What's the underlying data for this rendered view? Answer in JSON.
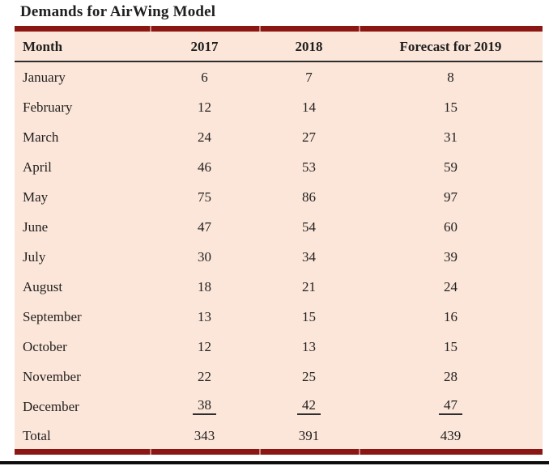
{
  "title": "Demands for AirWing Model",
  "table": {
    "columns": [
      "Month",
      "2017",
      "2018",
      "Forecast for 2019"
    ],
    "rows": [
      {
        "month": "January",
        "y2017": "6",
        "y2018": "7",
        "forecast": "8"
      },
      {
        "month": "February",
        "y2017": "12",
        "y2018": "14",
        "forecast": "15"
      },
      {
        "month": "March",
        "y2017": "24",
        "y2018": "27",
        "forecast": "31"
      },
      {
        "month": "April",
        "y2017": "46",
        "y2018": "53",
        "forecast": "59"
      },
      {
        "month": "May",
        "y2017": "75",
        "y2018": "86",
        "forecast": "97"
      },
      {
        "month": "June",
        "y2017": "47",
        "y2018": "54",
        "forecast": "60"
      },
      {
        "month": "July",
        "y2017": "30",
        "y2018": "34",
        "forecast": "39"
      },
      {
        "month": "August",
        "y2017": "18",
        "y2018": "21",
        "forecast": "24"
      },
      {
        "month": "September",
        "y2017": "13",
        "y2018": "15",
        "forecast": "16"
      },
      {
        "month": "October",
        "y2017": "12",
        "y2018": "13",
        "forecast": "15"
      },
      {
        "month": "November",
        "y2017": "22",
        "y2018": "25",
        "forecast": "28"
      },
      {
        "month": "December",
        "y2017": "38",
        "y2018": "42",
        "forecast": "47",
        "underline": true
      },
      {
        "month": "Total",
        "y2017": "343",
        "y2018": "391",
        "forecast": "439",
        "total": true
      }
    ]
  },
  "colors": {
    "accent": "#8a1713",
    "peach": "#fce6d9",
    "text": "#1f1f1f",
    "rule": "#2e2e2e",
    "black-line": "#0d0d0d"
  }
}
